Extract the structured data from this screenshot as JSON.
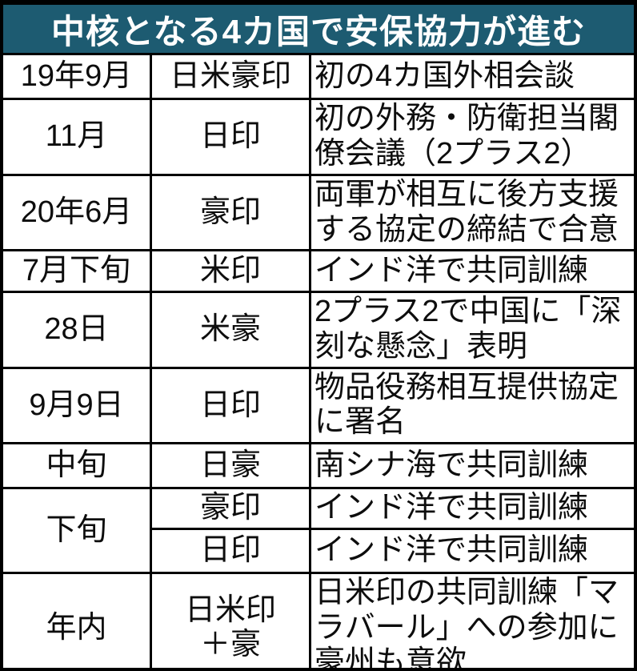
{
  "colors": {
    "header_bg": "#1d5b71",
    "header_text": "#ffffff",
    "border": "#000000",
    "body_text": "#0d0d0d",
    "background": "#ffffff"
  },
  "chart_data": {
    "type": "table",
    "title": "中核となる4カ国で安保協力が進む",
    "columns": [
      "date",
      "parties",
      "event"
    ],
    "legend_position": "none",
    "grid": "full-black-rules",
    "rows": [
      {
        "date": "19年9月",
        "parties": "日米豪印",
        "event": "初の4カ国外相会談"
      },
      {
        "date": "11月",
        "parties": "日印",
        "event": "初の外務・防衛担当閣僚会議（2プラス2）"
      },
      {
        "date": "20年6月",
        "parties": "豪印",
        "event": "両軍が相互に後方支援する協定の締結で合意"
      },
      {
        "date": "7月下旬",
        "parties": "米印",
        "event": "インド洋で共同訓練"
      },
      {
        "date": "28日",
        "parties": "米豪",
        "event": "2プラス2で中国に「深刻な懸念」表明"
      },
      {
        "date": "9月9日",
        "parties": "日印",
        "event": "物品役務相互提供協定に署名"
      },
      {
        "date": "中旬",
        "parties": "日豪",
        "event": "南シナ海で共同訓練"
      },
      {
        "date": "下旬",
        "date_rowspan": 2,
        "parties": "豪印",
        "event": "インド洋で共同訓練"
      },
      {
        "date": "",
        "parties": "日印",
        "event": "インド洋で共同訓練"
      },
      {
        "date": "年内",
        "parties": "日米印\n＋豪",
        "event": "日米印の共同訓練「マラバール」への参加に豪州も意欲"
      }
    ]
  }
}
